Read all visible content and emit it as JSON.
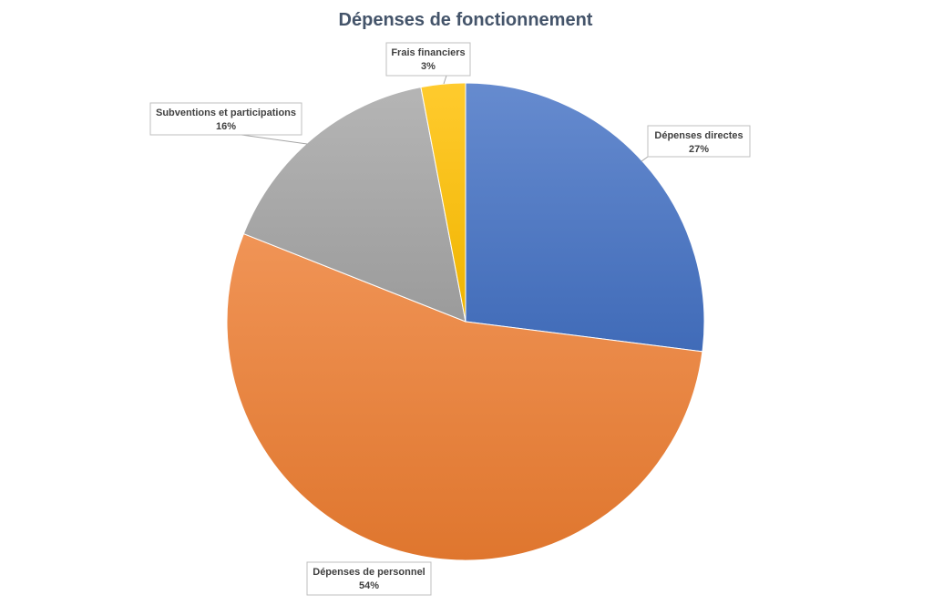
{
  "chart_data": {
    "type": "pie",
    "title": "Dépenses de fonctionnement",
    "slices": [
      {
        "label": "Dépenses directes",
        "value": 27,
        "value_label": "27%",
        "color": "#4472c4"
      },
      {
        "label": "Dépenses de personnel",
        "value": 54,
        "value_label": "54%",
        "color": "#ed7d31"
      },
      {
        "label": "Subventions et participations",
        "value": 16,
        "value_label": "16%",
        "color": "#a5a5a5"
      },
      {
        "label": "Frais financiers",
        "value": 3,
        "value_label": "3%",
        "color": "#ffc000"
      }
    ],
    "start": "top",
    "direction": "clockwise",
    "legend": "none",
    "data_labels": "outside with callout boxes"
  }
}
